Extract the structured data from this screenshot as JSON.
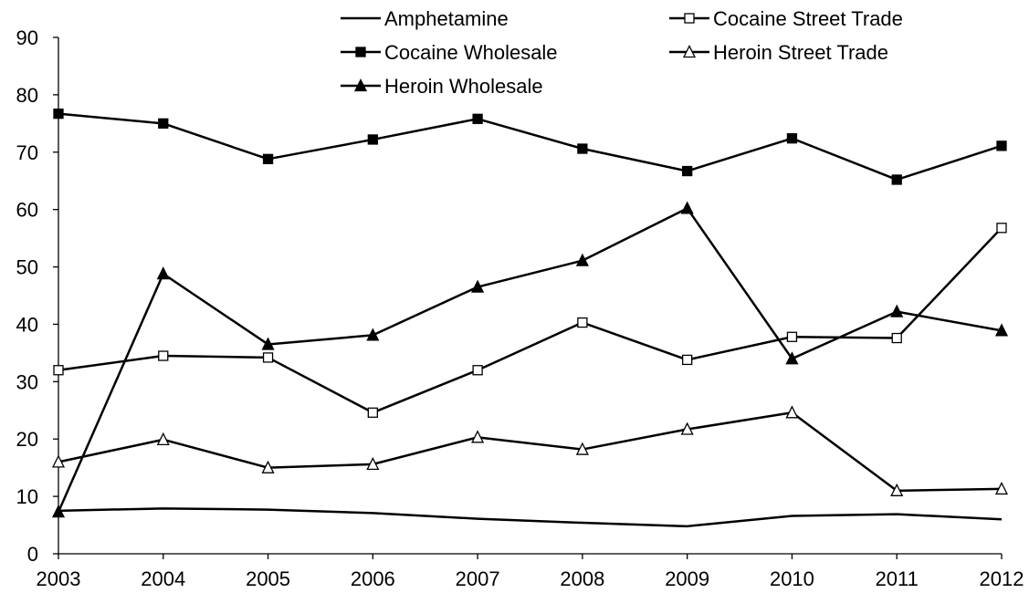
{
  "chart_data": {
    "type": "line",
    "title": "",
    "xlabel": "",
    "ylabel": "",
    "categories": [
      "2003",
      "2004",
      "2005",
      "2006",
      "2007",
      "2008",
      "2009",
      "2010",
      "2011",
      "2012"
    ],
    "ylim": [
      0,
      90
    ],
    "yticks": [
      "0",
      "10",
      "20",
      "30",
      "40",
      "50",
      "60",
      "70",
      "80",
      "90"
    ],
    "grid": false,
    "legend_position": "top",
    "series": [
      {
        "name": "Amphetamine",
        "marker": "none",
        "values": [
          7.5,
          7.9,
          7.7,
          7.1,
          6.1,
          5.4,
          4.8,
          6.6,
          6.9,
          6.0
        ]
      },
      {
        "name": "Cocaine Street Trade",
        "marker": "open-square",
        "values": [
          32.0,
          34.5,
          34.2,
          24.6,
          32.0,
          40.3,
          33.8,
          37.8,
          37.6,
          56.8
        ]
      },
      {
        "name": "Cocaine Wholesale",
        "marker": "filled-square",
        "values": [
          76.7,
          75.0,
          68.8,
          72.2,
          75.8,
          70.6,
          66.7,
          72.4,
          65.2,
          71.1
        ]
      },
      {
        "name": "Heroin Street Trade",
        "marker": "open-triangle",
        "values": [
          16.0,
          19.9,
          15.0,
          15.6,
          20.3,
          18.2,
          21.7,
          24.6,
          11.0,
          11.3
        ]
      },
      {
        "name": "Heroin Wholesale",
        "marker": "filled-triangle",
        "values": [
          7.3,
          48.8,
          36.5,
          38.1,
          46.5,
          51.1,
          60.2,
          34.0,
          42.2,
          38.9
        ]
      }
    ]
  }
}
